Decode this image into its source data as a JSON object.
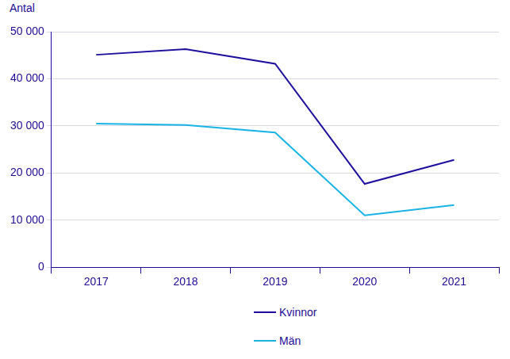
{
  "chart_data": {
    "type": "line",
    "ylabel": "Antal",
    "categories": [
      "2017",
      "2018",
      "2019",
      "2020",
      "2021"
    ],
    "series": [
      {
        "name": "Kvinnor",
        "color": "#1e0fa0",
        "values": [
          45100,
          46300,
          43200,
          17700,
          22800
        ]
      },
      {
        "name": "Män",
        "color": "#19b4e6",
        "values": [
          30500,
          30200,
          28600,
          11000,
          13200
        ]
      }
    ],
    "ylim": [
      0,
      50000
    ],
    "yticks": [
      0,
      {
        "value": 10000,
        "label": "10 000"
      },
      {
        "value": 20000,
        "label": "20 000"
      },
      {
        "value": 30000,
        "label": "30 000"
      },
      {
        "value": 40000,
        "label": "40 000"
      },
      {
        "value": 50000,
        "label": "50 000"
      }
    ],
    "grid": true,
    "legend": "bottom"
  }
}
